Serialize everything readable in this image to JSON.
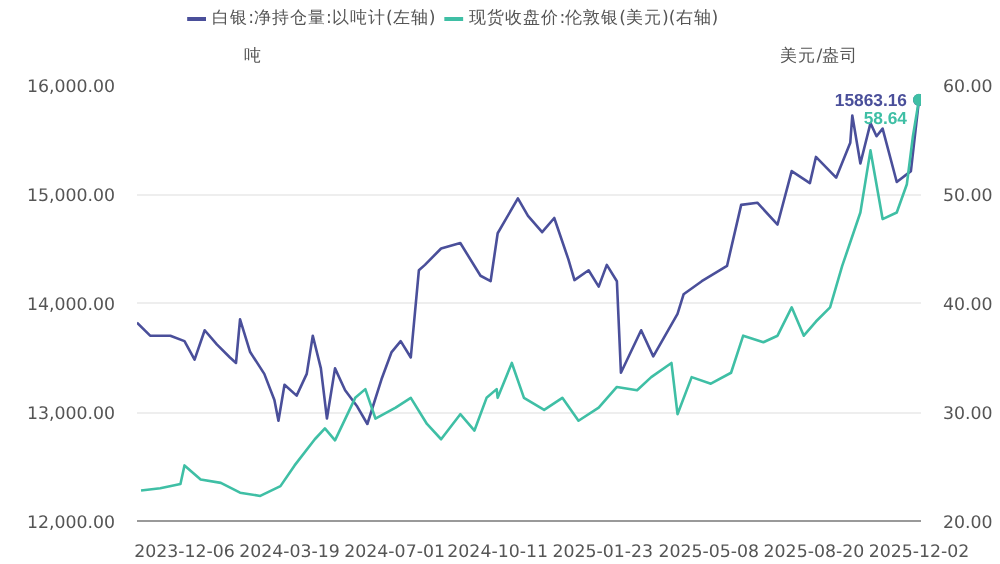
{
  "chart_data": {
    "type": "line",
    "ylabel": "吨",
    "y2label": "美元/盎司",
    "xlim": [
      "2023-10-20",
      "2025-12-04"
    ],
    "xticks": [
      "2023-12-06",
      "2024-03-19",
      "2024-07-01",
      "2024-10-11",
      "2025-01-23",
      "2025-05-08",
      "2025-08-20",
      "2025-12-02"
    ],
    "ylim": [
      12000,
      16000
    ],
    "yticks": [
      {
        "value": 12000,
        "label": "12,000.00"
      },
      {
        "value": 13000,
        "label": "13,000.00"
      },
      {
        "value": 14000,
        "label": "14,000.00"
      },
      {
        "value": 15000,
        "label": "15,000.00"
      },
      {
        "value": 16000,
        "label": "16,000.00"
      }
    ],
    "y2lim": [
      20,
      60
    ],
    "y2ticks": [
      {
        "value": 20,
        "label": "20.00"
      },
      {
        "value": 30,
        "label": "30.00"
      },
      {
        "value": 40,
        "label": "40.00"
      },
      {
        "value": 50,
        "label": "50.00"
      },
      {
        "value": 60,
        "label": "60.00"
      }
    ],
    "grid": "y",
    "legend": "top left",
    "line_style": "solid",
    "series": [
      {
        "name": "白银:净持仓量:以吨计(左轴)",
        "color": "#4a4f9a",
        "x": [
          "2023-10-20",
          "2023-11-02",
          "2023-11-22",
          "2023-12-06",
          "2023-12-16",
          "2023-12-26",
          "2024-01-07",
          "2024-01-20",
          "2024-01-26",
          "2024-01-30",
          "2024-02-09",
          "2024-02-23",
          "2024-03-04",
          "2024-03-08",
          "2024-03-14",
          "2024-03-26",
          "2024-04-05",
          "2024-04-11",
          "2024-04-19",
          "2024-04-25",
          "2024-05-03",
          "2024-05-13",
          "2024-05-25",
          "2024-06-04",
          "2024-06-18",
          "2024-06-28",
          "2024-07-07",
          "2024-07-17",
          "2024-07-25",
          "2024-07-31",
          "2024-08-16",
          "2024-09-04",
          "2024-09-24",
          "2024-10-04",
          "2024-10-11",
          "2024-10-31",
          "2024-11-10",
          "2024-11-24",
          "2024-12-06",
          "2024-12-20",
          "2024-12-26",
          "2025-01-09",
          "2025-01-19",
          "2025-01-27",
          "2025-02-06",
          "2025-02-10",
          "2025-03-02",
          "2025-03-14",
          "2025-04-07",
          "2025-04-13",
          "2025-05-01",
          "2025-05-26",
          "2025-06-09",
          "2025-06-25",
          "2025-07-15",
          "2025-07-29",
          "2025-08-16",
          "2025-08-22",
          "2025-09-11",
          "2025-09-25",
          "2025-09-27",
          "2025-10-05",
          "2025-10-15",
          "2025-10-21",
          "2025-10-27",
          "2025-11-10",
          "2025-11-24",
          "2025-12-02"
        ],
        "values": [
          13820,
          13700,
          13700,
          13650,
          13480,
          13750,
          13620,
          13500,
          13450,
          13850,
          13550,
          13350,
          13110,
          12920,
          13250,
          13150,
          13350,
          13700,
          13400,
          12940,
          13400,
          13200,
          13050,
          12890,
          13300,
          13550,
          13650,
          13500,
          14300,
          14350,
          14500,
          14550,
          14250,
          14200,
          14640,
          14960,
          14800,
          14650,
          14780,
          14400,
          14210,
          14300,
          14150,
          14350,
          14200,
          13360,
          13750,
          13510,
          13900,
          14080,
          14200,
          14340,
          14900,
          14920,
          14720,
          15210,
          15100,
          15340,
          15150,
          15470,
          15720,
          15280,
          15650,
          15530,
          15600,
          15110,
          15210,
          15863.16
        ],
        "value_labels": [
          null,
          null,
          null,
          null,
          null,
          null,
          null,
          null,
          null,
          null,
          null,
          null,
          null,
          null,
          null,
          null,
          null,
          null,
          null,
          null,
          null,
          null,
          null,
          null,
          null,
          null,
          null,
          null,
          null,
          null,
          null,
          null,
          null,
          null,
          null,
          null,
          null,
          null,
          null,
          null,
          null,
          null,
          null,
          null,
          null,
          null,
          null,
          null,
          null,
          null,
          null,
          null,
          null,
          null,
          null,
          null,
          null,
          null,
          null,
          null,
          null,
          null,
          null,
          null,
          null,
          null,
          null,
          "15863.16"
        ]
      },
      {
        "name": "现货收盘价:伦敦银(美元)(右轴)",
        "color": "#3fbfa5",
        "axis": "y2",
        "x": [
          "2023-10-24",
          "2023-11-12",
          "2023-12-02",
          "2023-12-06",
          "2023-12-22",
          "2024-01-11",
          "2024-01-30",
          "2024-02-19",
          "2024-03-10",
          "2024-03-24",
          "2024-04-13",
          "2024-04-23",
          "2024-05-03",
          "2024-05-23",
          "2024-06-02",
          "2024-06-12",
          "2024-07-02",
          "2024-07-17",
          "2024-08-02",
          "2024-08-16",
          "2024-09-04",
          "2024-09-18",
          "2024-09-30",
          "2024-10-10",
          "2024-10-11",
          "2024-10-25",
          "2024-11-06",
          "2024-11-26",
          "2024-12-14",
          "2024-12-30",
          "2025-01-19",
          "2025-02-06",
          "2025-02-26",
          "2025-03-12",
          "2025-04-01",
          "2025-04-07",
          "2025-04-21",
          "2025-05-10",
          "2025-05-30",
          "2025-06-11",
          "2025-07-01",
          "2025-07-15",
          "2025-07-29",
          "2025-08-10",
          "2025-08-22",
          "2025-09-05",
          "2025-09-17",
          "2025-10-05",
          "2025-10-15",
          "2025-10-27",
          "2025-11-10",
          "2025-11-20",
          "2025-11-26",
          "2025-12-02"
        ],
        "values": [
          22.8,
          23,
          23.4,
          25.1,
          23.8,
          23.5,
          22.6,
          22.3,
          23.2,
          25.1,
          27.5,
          28.5,
          27.4,
          31.3,
          32.1,
          29.4,
          30.4,
          31.3,
          28.9,
          27.5,
          29.8,
          28.3,
          31.3,
          32.1,
          31.3,
          34.5,
          31.3,
          30.2,
          31.3,
          29.2,
          30.4,
          32.3,
          32,
          33.2,
          34.5,
          29.8,
          33.2,
          32.6,
          33.6,
          37,
          36.4,
          37,
          39.6,
          37,
          38.3,
          39.6,
          43.4,
          48.3,
          54,
          47.7,
          48.3,
          50.9,
          55.3,
          58.64
        ],
        "value_labels": [
          null,
          null,
          null,
          null,
          null,
          null,
          null,
          null,
          null,
          null,
          null,
          null,
          null,
          null,
          null,
          null,
          null,
          null,
          null,
          null,
          null,
          null,
          null,
          null,
          null,
          null,
          null,
          null,
          null,
          null,
          null,
          null,
          null,
          null,
          null,
          null,
          null,
          null,
          null,
          null,
          null,
          null,
          null,
          null,
          null,
          null,
          null,
          null,
          null,
          null,
          null,
          null,
          null,
          "58.64"
        ]
      }
    ]
  }
}
